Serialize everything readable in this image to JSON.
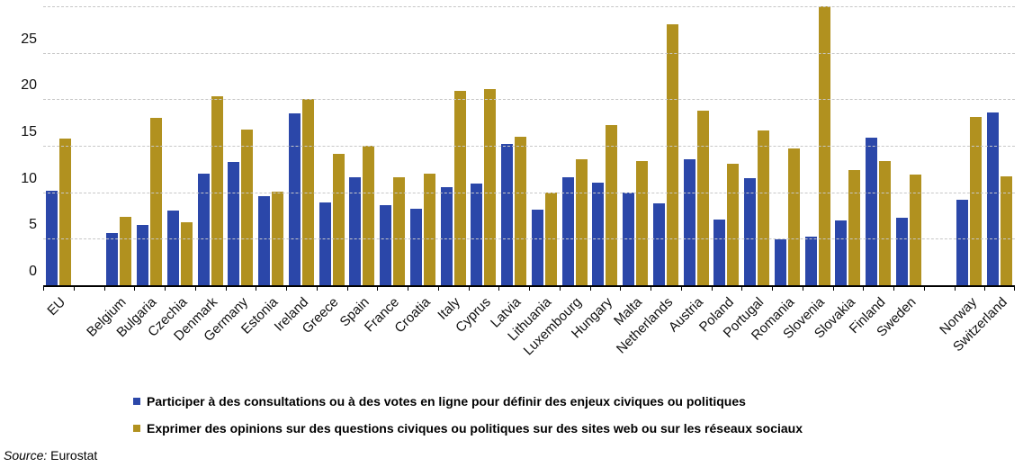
{
  "chart_data": {
    "type": "bar",
    "title": "",
    "xlabel": "",
    "ylabel": "",
    "ylim": [
      0,
      30
    ],
    "yticks": [
      0,
      5,
      10,
      15,
      20,
      25,
      30
    ],
    "grid": "horizontal-dashed",
    "legend_position": "bottom-left",
    "categories": [
      "EU",
      "Belgium",
      "Bulgaria",
      "Czechia",
      "Denmark",
      "Germany",
      "Estonia",
      "Ireland",
      "Greece",
      "Spain",
      "France",
      "Croatia",
      "Italy",
      "Cyprus",
      "Latvia",
      "Lithuania",
      "Luxembourg",
      "Hungary",
      "Malta",
      "Netherlands",
      "Austria",
      "Poland",
      "Portugal",
      "Romania",
      "Slovenia",
      "Slovakia",
      "Finland",
      "Sweden",
      "Norway",
      "Switzerland"
    ],
    "gap_after_indices": [
      0,
      27
    ],
    "series": [
      {
        "name": "Participer à des consultations ou à des votes en ligne pour définir des enjeux civiques ou politiques",
        "color": "#2B47A9",
        "values": [
          10.3,
          5.7,
          6.6,
          8.1,
          12.1,
          13.4,
          9.7,
          18.6,
          9.0,
          11.7,
          8.7,
          8.3,
          10.6,
          11.0,
          15.3,
          8.2,
          11.7,
          11.1,
          10.1,
          8.9,
          13.6,
          7.2,
          11.6,
          5.0,
          5.3,
          7.1,
          16.0,
          7.4,
          9.3,
          18.7
        ]
      },
      {
        "name": "Exprimer des opinions sur des questions civiques ou politiques sur des sites web ou sur les réseaux sociaux",
        "color": "#B1911F",
        "values": [
          15.9,
          7.5,
          18.1,
          6.9,
          20.4,
          16.8,
          10.2,
          20.1,
          14.2,
          15.1,
          11.7,
          12.1,
          21.0,
          21.2,
          16.1,
          10.1,
          13.6,
          17.3,
          13.5,
          28.2,
          18.9,
          13.2,
          16.7,
          14.8,
          30.1,
          12.5,
          13.5,
          12.0,
          18.2,
          11.8
        ]
      }
    ]
  },
  "source": {
    "label": "Source:",
    "value": "Eurostat"
  }
}
